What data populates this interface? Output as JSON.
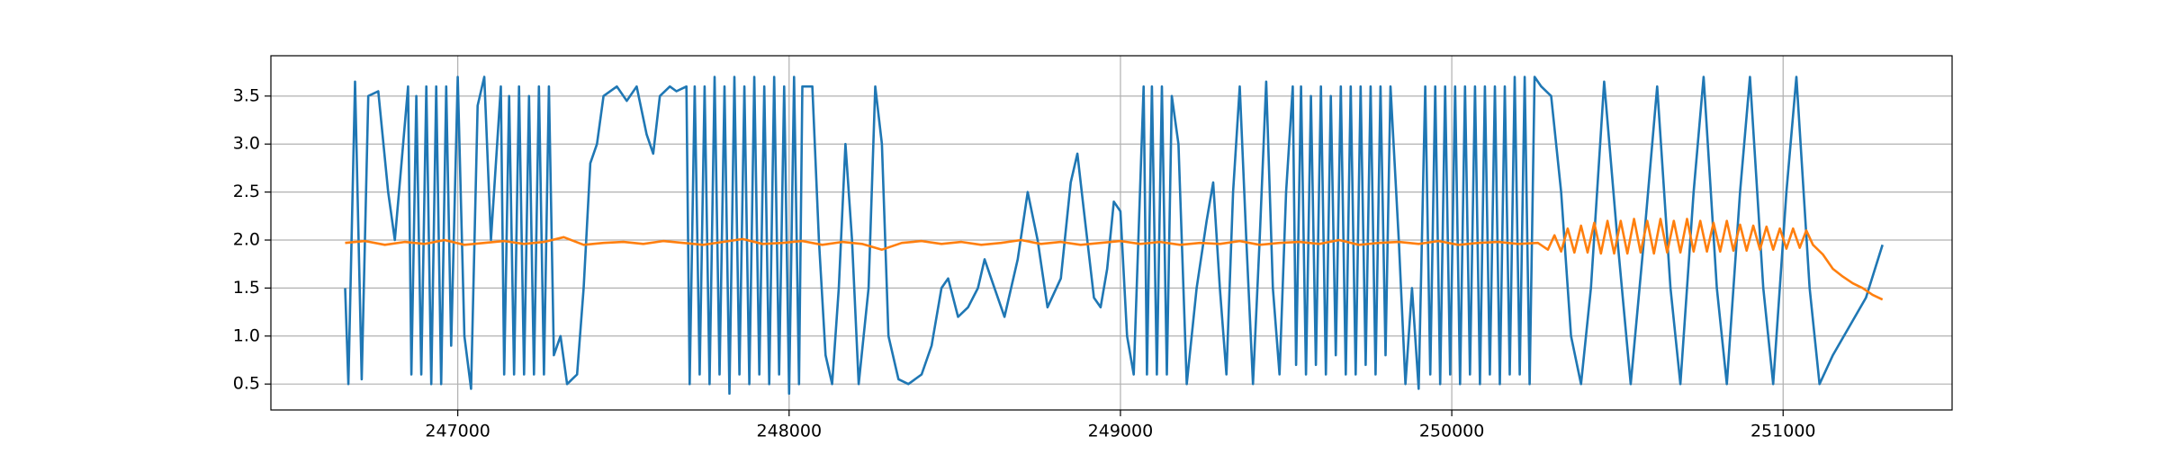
{
  "chart_data": {
    "type": "line",
    "xlim": [
      246436,
      251510
    ],
    "xticks": [
      247000,
      248000,
      249000,
      250000,
      251000
    ],
    "ylim": [
      0.23,
      3.92
    ],
    "yticks": [
      0.5,
      {
        "value": 1,
        "label": "1.0"
      },
      1.5,
      {
        "value": 2,
        "label": "2.0"
      },
      2.5,
      {
        "value": 3,
        "label": "3.0"
      },
      3.5
    ],
    "grid": true,
    "series": [
      {
        "color": "#1f77b4",
        "x": [
          246660,
          246670,
          246690,
          246710,
          246730,
          246760,
          246790,
          246810,
          246830,
          246850,
          246860,
          246875,
          246890,
          246905,
          246920,
          246935,
          246950,
          246965,
          246980,
          247000,
          247020,
          247040,
          247060,
          247080,
          247100,
          247130,
          247140,
          247155,
          247170,
          247185,
          247200,
          247215,
          247230,
          247245,
          247260,
          247275,
          247290,
          247310,
          247330,
          247360,
          247380,
          247400,
          247420,
          247440,
          247480,
          247510,
          247540,
          247570,
          247590,
          247610,
          247640,
          247660,
          247690,
          247700,
          247715,
          247730,
          247745,
          247760,
          247775,
          247790,
          247805,
          247820,
          247835,
          247850,
          247865,
          247880,
          247895,
          247910,
          247925,
          247940,
          247955,
          247970,
          247985,
          248000,
          248015,
          248030,
          248040,
          248070,
          248090,
          248110,
          248130,
          248150,
          248170,
          248190,
          248210,
          248240,
          248260,
          248280,
          248300,
          248330,
          248360,
          248400,
          248430,
          248460,
          248480,
          248510,
          248540,
          248570,
          248590,
          248620,
          248650,
          248690,
          248720,
          248750,
          248780,
          248820,
          248850,
          248870,
          248890,
          248920,
          248940,
          248960,
          248980,
          249000,
          249020,
          249040,
          249070,
          249080,
          249095,
          249110,
          249125,
          249140,
          249155,
          249175,
          249200,
          249230,
          249260,
          249280,
          249300,
          249320,
          249340,
          249360,
          249380,
          249400,
          249420,
          249440,
          249460,
          249480,
          249500,
          249520,
          249530,
          249545,
          249560,
          249575,
          249590,
          249605,
          249620,
          249635,
          249650,
          249665,
          249680,
          249695,
          249710,
          249725,
          249740,
          249755,
          249770,
          249785,
          249800,
          249815,
          249840,
          249860,
          249880,
          249900,
          249920,
          249935,
          249950,
          249965,
          249980,
          249995,
          250010,
          250025,
          250040,
          250055,
          250070,
          250085,
          250100,
          250115,
          250130,
          250145,
          250160,
          250175,
          250190,
          250205,
          250220,
          250235,
          250250,
          250270,
          250300,
          250330,
          250360,
          250390,
          250420,
          250460,
          250500,
          250540,
          250580,
          250620,
          250660,
          250690,
          250730,
          250760,
          250800,
          250830,
          250870,
          250900,
          250940,
          250970,
          251010,
          251040,
          251080,
          251110,
          251150,
          251200,
          251250,
          251300
        ],
        "values": [
          1.5,
          0.5,
          3.65,
          0.55,
          3.5,
          3.55,
          2.5,
          2.0,
          2.8,
          3.6,
          0.6,
          3.5,
          0.6,
          3.6,
          0.5,
          3.6,
          0.5,
          3.6,
          0.9,
          3.7,
          1.0,
          0.45,
          3.4,
          3.7,
          2.0,
          3.6,
          0.6,
          3.5,
          0.6,
          3.6,
          0.6,
          3.5,
          0.6,
          3.6,
          0.6,
          3.6,
          0.8,
          1.0,
          0.5,
          0.6,
          1.5,
          2.8,
          3.0,
          3.5,
          3.6,
          3.45,
          3.6,
          3.1,
          2.9,
          3.5,
          3.6,
          3.55,
          3.6,
          0.5,
          3.6,
          0.6,
          3.6,
          0.5,
          3.7,
          0.6,
          3.6,
          0.4,
          3.7,
          0.6,
          3.6,
          0.5,
          3.7,
          0.6,
          3.6,
          0.5,
          3.7,
          0.6,
          3.6,
          0.4,
          3.7,
          0.5,
          3.6,
          3.6,
          2.0,
          0.8,
          0.5,
          1.5,
          3.0,
          2.0,
          0.5,
          1.5,
          3.6,
          3.0,
          1.0,
          0.55,
          0.5,
          0.6,
          0.9,
          1.5,
          1.6,
          1.2,
          1.3,
          1.5,
          1.8,
          1.5,
          1.2,
          1.8,
          2.5,
          2.0,
          1.3,
          1.6,
          2.6,
          2.9,
          2.3,
          1.4,
          1.3,
          1.7,
          2.4,
          2.3,
          1.0,
          0.6,
          3.6,
          0.6,
          3.6,
          0.6,
          3.6,
          0.6,
          3.5,
          3.0,
          0.5,
          1.5,
          2.2,
          2.6,
          1.5,
          0.6,
          2.5,
          3.6,
          2.0,
          0.5,
          2.0,
          3.65,
          1.5,
          0.6,
          2.5,
          3.6,
          0.7,
          3.6,
          0.6,
          3.5,
          0.7,
          3.6,
          0.6,
          3.5,
          0.8,
          3.6,
          0.6,
          3.6,
          0.6,
          3.6,
          0.7,
          3.6,
          0.6,
          3.6,
          0.8,
          3.6,
          2.0,
          0.5,
          1.5,
          0.45,
          3.6,
          0.6,
          3.6,
          0.5,
          3.6,
          0.6,
          3.6,
          0.5,
          3.6,
          0.6,
          3.6,
          0.5,
          3.6,
          0.6,
          3.6,
          0.5,
          3.6,
          0.6,
          3.7,
          0.6,
          3.7,
          0.5,
          3.7,
          3.6,
          3.5,
          2.5,
          1.0,
          0.5,
          1.5,
          3.65,
          2.0,
          0.5,
          2.0,
          3.6,
          1.5,
          0.5,
          2.5,
          3.7,
          1.5,
          0.5,
          2.5,
          3.7,
          1.5,
          0.5,
          2.5,
          3.7,
          1.5,
          0.5,
          0.8,
          1.1,
          1.4,
          1.95
        ]
      },
      {
        "color": "#ff7f0e",
        "x": [
          246660,
          246720,
          246780,
          246840,
          246900,
          246960,
          247020,
          247080,
          247140,
          247200,
          247260,
          247320,
          247380,
          247440,
          247500,
          247560,
          247620,
          247680,
          247740,
          247800,
          247860,
          247920,
          247980,
          248040,
          248100,
          248160,
          248220,
          248280,
          248340,
          248400,
          248460,
          248520,
          248580,
          248640,
          248700,
          248760,
          248820,
          248880,
          248940,
          249000,
          249060,
          249120,
          249180,
          249240,
          249300,
          249360,
          249420,
          249480,
          249540,
          249600,
          249660,
          249720,
          249780,
          249840,
          249900,
          249960,
          250020,
          250080,
          250140,
          250200,
          250260,
          250290,
          250310,
          250330,
          250350,
          250370,
          250390,
          250410,
          250430,
          250450,
          250470,
          250490,
          250510,
          250530,
          250550,
          250570,
          250590,
          250610,
          250630,
          250650,
          250670,
          250690,
          250710,
          250730,
          250750,
          250770,
          250790,
          250810,
          250830,
          250850,
          250870,
          250890,
          250910,
          250930,
          250950,
          250970,
          250990,
          251010,
          251030,
          251050,
          251070,
          251090,
          251120,
          251150,
          251180,
          251210,
          251240,
          251270,
          251300
        ],
        "values": [
          1.97,
          1.99,
          1.95,
          1.98,
          1.96,
          2.0,
          1.95,
          1.97,
          1.99,
          1.96,
          1.98,
          2.03,
          1.95,
          1.97,
          1.98,
          1.96,
          1.99,
          1.97,
          1.95,
          1.98,
          2.01,
          1.96,
          1.97,
          1.99,
          1.95,
          1.98,
          1.96,
          1.9,
          1.97,
          1.99,
          1.96,
          1.98,
          1.95,
          1.97,
          2.0,
          1.96,
          1.98,
          1.95,
          1.97,
          1.99,
          1.96,
          1.98,
          1.95,
          1.97,
          1.96,
          1.99,
          1.95,
          1.97,
          1.98,
          1.96,
          2.0,
          1.95,
          1.97,
          1.98,
          1.96,
          1.99,
          1.95,
          1.97,
          1.98,
          1.96,
          1.97,
          1.9,
          2.05,
          1.88,
          2.12,
          1.87,
          2.15,
          1.87,
          2.18,
          1.86,
          2.2,
          1.86,
          2.2,
          1.86,
          2.22,
          1.87,
          2.2,
          1.86,
          2.22,
          1.87,
          2.2,
          1.87,
          2.22,
          1.88,
          2.2,
          1.88,
          2.18,
          1.88,
          2.2,
          1.89,
          2.16,
          1.89,
          2.15,
          1.9,
          2.14,
          1.9,
          2.12,
          1.91,
          2.12,
          1.92,
          2.1,
          1.95,
          1.85,
          1.7,
          1.62,
          1.55,
          1.5,
          1.43,
          1.38
        ]
      }
    ]
  }
}
